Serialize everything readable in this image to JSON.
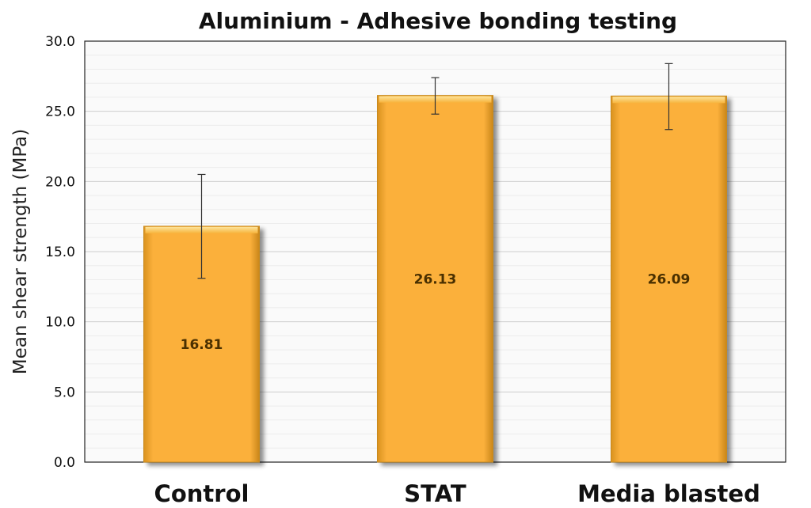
{
  "chart_data": {
    "type": "bar",
    "title": "Aluminium - Adhesive bonding testing",
    "xlabel": "",
    "ylabel": "Mean shear strength (MPa)",
    "categories": [
      "Control",
      "STAT",
      "Media blasted"
    ],
    "values": [
      16.81,
      26.13,
      26.09
    ],
    "value_labels": [
      "16.81",
      "26.13",
      "26.09"
    ],
    "error_low": [
      13.1,
      24.8,
      23.7
    ],
    "error_high": [
      20.5,
      27.4,
      28.4
    ],
    "ylim": [
      0,
      30
    ],
    "yticks": [
      "0.0",
      "5.0",
      "10.0",
      "15.0",
      "20.0",
      "25.0",
      "30.0"
    ],
    "grid": true,
    "legend": "none",
    "bar_color": "#FBB03B"
  }
}
